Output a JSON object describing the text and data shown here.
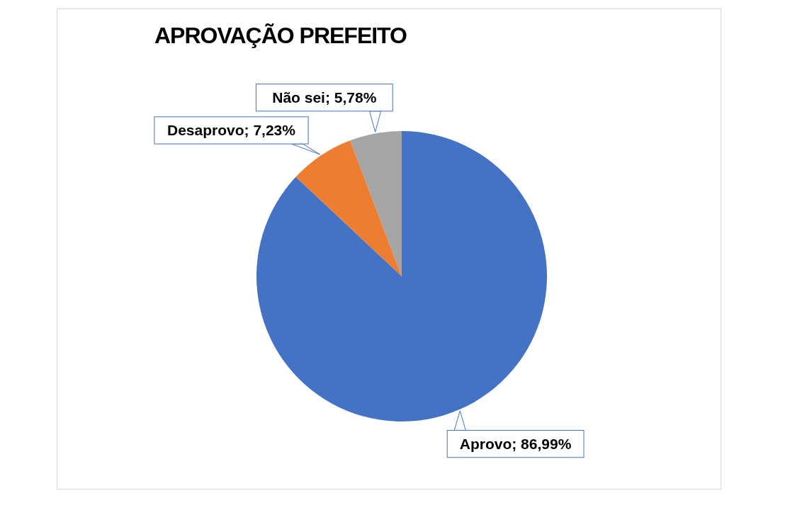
{
  "chart_data": {
    "type": "pie",
    "title": "APROVAÇÃO PREFEITO",
    "categories": [
      "Aprovo",
      "Desaprovo",
      "Não sei"
    ],
    "values": [
      86.99,
      7.23,
      5.78
    ],
    "colors": [
      "#4472c4",
      "#ed7d31",
      "#a5a5a5"
    ],
    "value_labels": [
      "86,99%",
      "7,23%",
      "5,78%"
    ]
  }
}
